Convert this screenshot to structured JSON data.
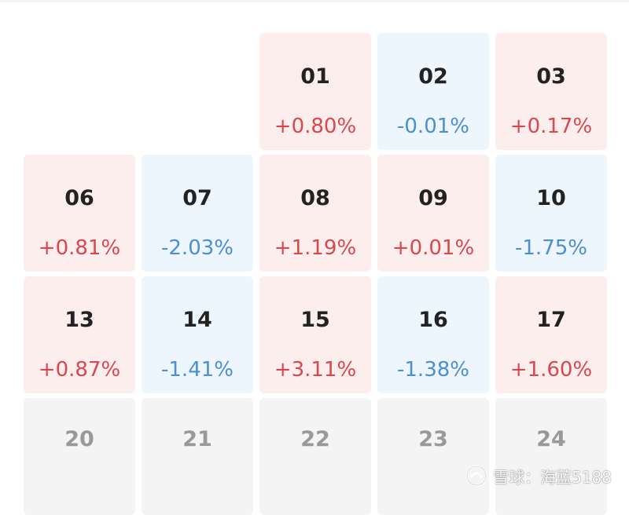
{
  "calendar": {
    "rows": [
      [
        {
          "day": "",
          "change": "",
          "trend": "empty"
        },
        {
          "day": "",
          "change": "",
          "trend": "empty"
        },
        {
          "day": "01",
          "change": "+0.80%",
          "trend": "up"
        },
        {
          "day": "02",
          "change": "-0.01%",
          "trend": "down"
        },
        {
          "day": "03",
          "change": "+0.17%",
          "trend": "up"
        }
      ],
      [
        {
          "day": "06",
          "change": "+0.81%",
          "trend": "up"
        },
        {
          "day": "07",
          "change": "-2.03%",
          "trend": "down"
        },
        {
          "day": "08",
          "change": "+1.19%",
          "trend": "up"
        },
        {
          "day": "09",
          "change": "+0.01%",
          "trend": "up"
        },
        {
          "day": "10",
          "change": "-1.75%",
          "trend": "down"
        }
      ],
      [
        {
          "day": "13",
          "change": "+0.87%",
          "trend": "up"
        },
        {
          "day": "14",
          "change": "-1.41%",
          "trend": "down"
        },
        {
          "day": "15",
          "change": "+3.11%",
          "trend": "up"
        },
        {
          "day": "16",
          "change": "-1.38%",
          "trend": "down"
        },
        {
          "day": "17",
          "change": "+1.60%",
          "trend": "up"
        }
      ],
      [
        {
          "day": "20",
          "change": "",
          "trend": "neutral"
        },
        {
          "day": "21",
          "change": "",
          "trend": "neutral"
        },
        {
          "day": "22",
          "change": "",
          "trend": "neutral"
        },
        {
          "day": "23",
          "change": "",
          "trend": "neutral"
        },
        {
          "day": "24",
          "change": "",
          "trend": "neutral"
        }
      ]
    ]
  },
  "colors": {
    "up_bg": "#fdeeee",
    "up_text": "#d9474f",
    "down_bg": "#edf5fd",
    "down_text": "#4d8fd0",
    "neutral_bg": "#f4f4f4",
    "neutral_text": "#999999"
  },
  "watermark": {
    "icon": "snowball-logo-icon",
    "text": "雪球：海蓝5188"
  }
}
